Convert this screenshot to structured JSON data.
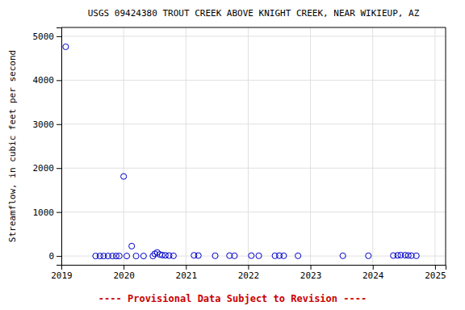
{
  "chart_data": {
    "type": "scatter",
    "title": "USGS 09424380 TROUT CREEK ABOVE KNIGHT CREEK, NEAR WIKIEUP, AZ",
    "ylabel": "Streamflow, in cubic feet per second",
    "x": [
      2019.07,
      2019.55,
      2019.62,
      2019.68,
      2019.75,
      2019.82,
      2019.88,
      2019.93,
      2020.0,
      2020.05,
      2020.13,
      2020.2,
      2020.32,
      2020.47,
      2020.5,
      2020.54,
      2020.58,
      2020.62,
      2020.67,
      2020.73,
      2020.8,
      2021.13,
      2021.2,
      2021.47,
      2021.7,
      2021.78,
      2022.05,
      2022.17,
      2022.43,
      2022.5,
      2022.57,
      2022.8,
      2023.52,
      2023.93,
      2024.33,
      2024.4,
      2024.45,
      2024.52,
      2024.57,
      2024.62,
      2024.7
    ],
    "values": [
      4760,
      0,
      0,
      0,
      0,
      0,
      0,
      0,
      1810,
      0,
      225,
      0,
      0,
      0,
      50,
      80,
      35,
      20,
      15,
      10,
      5,
      15,
      10,
      5,
      8,
      5,
      8,
      5,
      5,
      8,
      5,
      5,
      5,
      5,
      10,
      15,
      20,
      18,
      12,
      8,
      5
    ],
    "color": "#0000cc",
    "marker": "circle",
    "xlim": [
      2019.0,
      2025.17
    ],
    "ylim": [
      -200,
      5200
    ],
    "xticks": [
      2019,
      2020,
      2021,
      2022,
      2023,
      2024,
      2025
    ],
    "yticks": [
      0,
      1000,
      2000,
      3000,
      4000,
      5000
    ],
    "grid": true,
    "annotations": [
      {
        "text": "---- Provisional Data Subject to Revision ----",
        "color": "#cc0000"
      }
    ]
  }
}
